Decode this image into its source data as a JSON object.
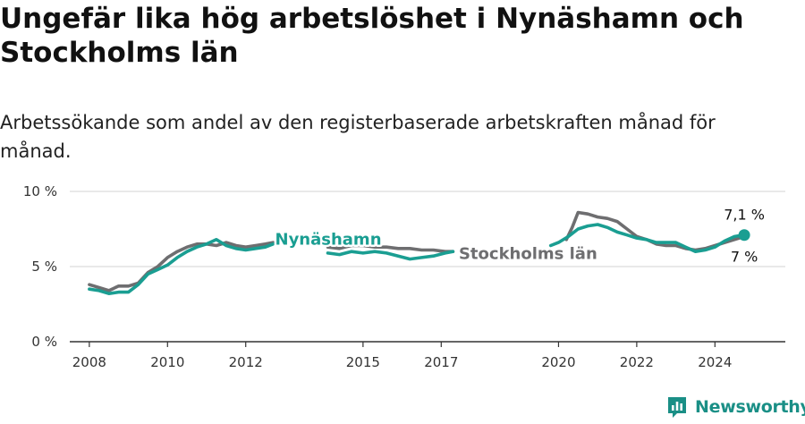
{
  "title": "Ungefär lika hög arbetslöshet i Nynäshamn och Stockholms län",
  "subtitle": "Arbetssökande som andel av den registerbaserade arbetskraften månad för månad.",
  "brand": {
    "name": "Newsworthy",
    "icon": "newsworthy-logo-icon"
  },
  "colors": {
    "nynashamn": "#1a9e92",
    "stockholm": "#6e6e70",
    "grid": "#dcdcdc",
    "axis": "#333333"
  },
  "chart_data": {
    "type": "line",
    "title": "Ungefär lika hög arbetslöshet i Nynäshamn och Stockholms län",
    "xlabel": "",
    "ylabel": "",
    "xlim": [
      2007.5,
      2025.8
    ],
    "ylim": [
      0,
      10
    ],
    "y_ticks": [
      0,
      5,
      10
    ],
    "y_tick_labels": [
      "0 %",
      "5 %",
      "10 %"
    ],
    "x_ticks": [
      2008,
      2010,
      2012,
      2015,
      2017,
      2020,
      2022,
      2024
    ],
    "x_tick_labels": [
      "2008",
      "2010",
      "2012",
      "2015",
      "2017",
      "2020",
      "2022",
      "2024"
    ],
    "grid": true,
    "series": [
      {
        "name": "Stockholms län",
        "label": "Stockholms län",
        "end_label": "7 %",
        "segments": [
          [
            [
              2008.0,
              3.8
            ],
            [
              2008.25,
              3.6
            ],
            [
              2008.5,
              3.4
            ],
            [
              2008.75,
              3.7
            ],
            [
              2009.0,
              3.7
            ],
            [
              2009.25,
              3.9
            ],
            [
              2009.5,
              4.6
            ],
            [
              2009.75,
              5.0
            ],
            [
              2010.0,
              5.6
            ],
            [
              2010.25,
              6.0
            ],
            [
              2010.5,
              6.3
            ],
            [
              2010.75,
              6.5
            ],
            [
              2011.0,
              6.5
            ],
            [
              2011.25,
              6.4
            ],
            [
              2011.5,
              6.6
            ],
            [
              2011.75,
              6.4
            ],
            [
              2012.0,
              6.3
            ],
            [
              2012.25,
              6.4
            ],
            [
              2012.5,
              6.5
            ],
            [
              2012.7,
              6.6
            ]
          ],
          [
            [
              2014.1,
              6.3
            ],
            [
              2014.4,
              6.2
            ],
            [
              2014.7,
              6.4
            ],
            [
              2015.0,
              6.4
            ],
            [
              2015.3,
              6.3
            ],
            [
              2015.6,
              6.3
            ],
            [
              2015.9,
              6.2
            ],
            [
              2016.2,
              6.2
            ],
            [
              2016.5,
              6.1
            ],
            [
              2016.8,
              6.1
            ],
            [
              2017.1,
              6.0
            ],
            [
              2017.3,
              6.0
            ]
          ],
          [
            [
              2020.2,
              6.8
            ],
            [
              2020.35,
              7.6
            ],
            [
              2020.5,
              8.6
            ],
            [
              2020.75,
              8.5
            ],
            [
              2021.0,
              8.3
            ],
            [
              2021.25,
              8.2
            ],
            [
              2021.5,
              8.0
            ],
            [
              2021.75,
              7.5
            ],
            [
              2022.0,
              7.0
            ],
            [
              2022.25,
              6.8
            ],
            [
              2022.5,
              6.5
            ],
            [
              2022.75,
              6.4
            ],
            [
              2023.0,
              6.4
            ],
            [
              2023.25,
              6.2
            ],
            [
              2023.5,
              6.1
            ],
            [
              2023.75,
              6.2
            ],
            [
              2024.0,
              6.4
            ],
            [
              2024.25,
              6.6
            ],
            [
              2024.5,
              6.8
            ],
            [
              2024.75,
              7.0
            ]
          ]
        ]
      },
      {
        "name": "Nynäshamn",
        "label": "Nynäshamn",
        "end_label": "7,1 %",
        "segments": [
          [
            [
              2008.0,
              3.5
            ],
            [
              2008.25,
              3.4
            ],
            [
              2008.5,
              3.2
            ],
            [
              2008.75,
              3.3
            ],
            [
              2009.0,
              3.3
            ],
            [
              2009.25,
              3.8
            ],
            [
              2009.5,
              4.5
            ],
            [
              2009.75,
              4.8
            ],
            [
              2010.0,
              5.1
            ],
            [
              2010.25,
              5.6
            ],
            [
              2010.5,
              6.0
            ],
            [
              2010.75,
              6.3
            ],
            [
              2011.0,
              6.5
            ],
            [
              2011.25,
              6.8
            ],
            [
              2011.5,
              6.4
            ],
            [
              2011.75,
              6.2
            ],
            [
              2012.0,
              6.1
            ],
            [
              2012.25,
              6.2
            ],
            [
              2012.5,
              6.3
            ],
            [
              2012.7,
              6.5
            ]
          ],
          [
            [
              2014.1,
              5.9
            ],
            [
              2014.4,
              5.8
            ],
            [
              2014.7,
              6.0
            ],
            [
              2015.0,
              5.9
            ],
            [
              2015.3,
              6.0
            ],
            [
              2015.6,
              5.9
            ],
            [
              2015.9,
              5.7
            ],
            [
              2016.2,
              5.5
            ],
            [
              2016.5,
              5.6
            ],
            [
              2016.8,
              5.7
            ],
            [
              2017.1,
              5.9
            ],
            [
              2017.3,
              6.0
            ]
          ],
          [
            [
              2019.8,
              6.4
            ],
            [
              2020.0,
              6.6
            ],
            [
              2020.25,
              7.0
            ],
            [
              2020.5,
              7.5
            ],
            [
              2020.75,
              7.7
            ],
            [
              2021.0,
              7.8
            ],
            [
              2021.25,
              7.6
            ],
            [
              2021.5,
              7.3
            ],
            [
              2021.75,
              7.1
            ],
            [
              2022.0,
              6.9
            ],
            [
              2022.25,
              6.8
            ],
            [
              2022.5,
              6.6
            ],
            [
              2022.75,
              6.6
            ],
            [
              2023.0,
              6.6
            ],
            [
              2023.25,
              6.3
            ],
            [
              2023.5,
              6.0
            ],
            [
              2023.75,
              6.1
            ],
            [
              2024.0,
              6.3
            ],
            [
              2024.25,
              6.7
            ],
            [
              2024.5,
              7.0
            ],
            [
              2024.75,
              7.1
            ]
          ]
        ]
      }
    ]
  }
}
